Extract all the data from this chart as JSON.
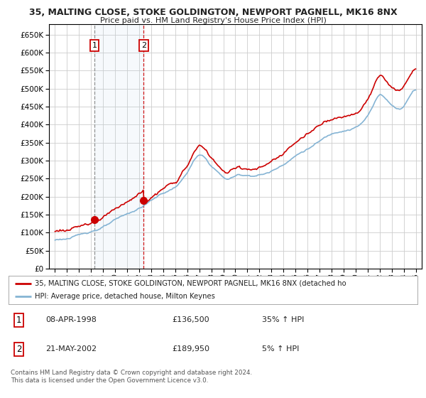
{
  "title1": "35, MALTING CLOSE, STOKE GOLDINGTON, NEWPORT PAGNELL, MK16 8NX",
  "title2": "Price paid vs. HM Land Registry's House Price Index (HPI)",
  "bg_color": "#ffffff",
  "plot_bg_color": "#ffffff",
  "grid_color": "#cccccc",
  "hpi_color": "#85b4d4",
  "price_color": "#cc0000",
  "sale1_date": 1998.27,
  "sale1_price": 136500,
  "sale2_date": 2002.38,
  "sale2_price": 189950,
  "sale1_label": "1",
  "sale2_label": "2",
  "legend_line1": "35, MALTING CLOSE, STOKE GOLDINGTON, NEWPORT PAGNELL, MK16 8NX (detached ho",
  "legend_line2": "HPI: Average price, detached house, Milton Keynes",
  "table_row1": [
    "1",
    "08-APR-1998",
    "£136,500",
    "35% ↑ HPI"
  ],
  "table_row2": [
    "2",
    "21-MAY-2002",
    "£189,950",
    "5% ↑ HPI"
  ],
  "footer": "Contains HM Land Registry data © Crown copyright and database right 2024.\nThis data is licensed under the Open Government Licence v3.0.",
  "ylim_min": 0,
  "ylim_max": 680000,
  "yticks": [
    0,
    50000,
    100000,
    150000,
    200000,
    250000,
    300000,
    350000,
    400000,
    450000,
    500000,
    550000,
    600000,
    650000
  ],
  "xmin": 1994.5,
  "xmax": 2025.5
}
